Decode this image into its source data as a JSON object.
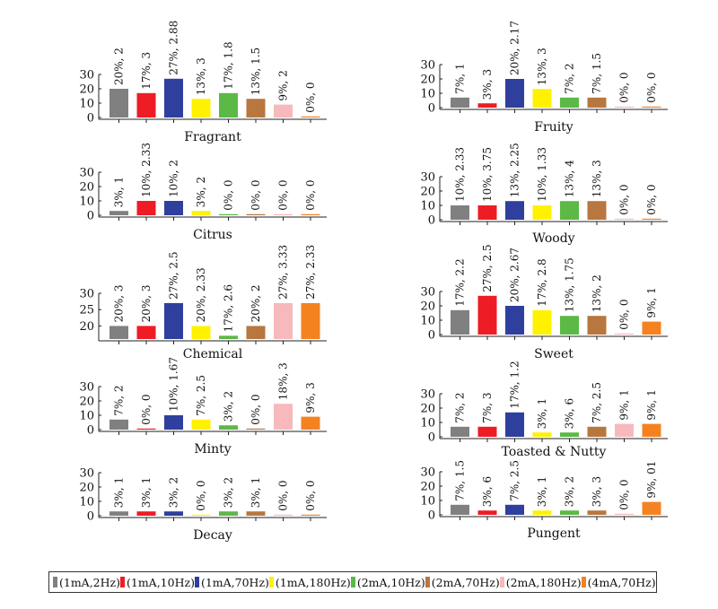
{
  "chart_data": [
    {
      "type": "bar",
      "title": "Fragrant",
      "ylim": [
        0,
        30
      ],
      "yticks": [
        0,
        10,
        20,
        30
      ],
      "values": [
        20,
        17,
        27,
        13,
        17,
        13,
        9,
        0
      ],
      "labels": [
        "20%, 2",
        "17%, 3",
        "27%, 2.88",
        "13%, 3",
        "17%, 1.8",
        "13%, 1.5",
        "9%, 2",
        "0%, 0"
      ]
    },
    {
      "type": "bar",
      "title": "Fruity",
      "ylim": [
        0,
        30
      ],
      "yticks": [
        0,
        10,
        20,
        30
      ],
      "values": [
        7,
        3,
        20,
        13,
        7,
        7,
        0,
        0
      ],
      "labels": [
        "7%, 1",
        "3%, 3",
        "20%, 2.17",
        "13%, 3",
        "7%, 2",
        "7%, 1.5",
        "0%, 0",
        "0%, 0"
      ]
    },
    {
      "type": "bar",
      "title": "Citrus",
      "ylim": [
        0,
        30
      ],
      "yticks": [
        0,
        10,
        20,
        30
      ],
      "values": [
        3,
        10,
        10,
        3,
        0,
        0,
        0,
        0
      ],
      "labels": [
        "3%, 1",
        "10%, 2.33",
        "10%, 2",
        "3%, 2",
        "0%, 0",
        "0%, 0",
        "0%, 0",
        "0%, 0"
      ]
    },
    {
      "type": "bar",
      "title": "Woody",
      "ylim": [
        0,
        30
      ],
      "yticks": [
        0,
        10,
        20,
        30
      ],
      "values": [
        10,
        10,
        13,
        10,
        13,
        13,
        0,
        0
      ],
      "labels": [
        "10%, 2.33",
        "10%, 3.75",
        "13%, 2.25",
        "10%, 1.33",
        "13%, 4",
        "13%, 3",
        "0%, 0",
        "0%, 0"
      ]
    },
    {
      "type": "bar",
      "title": "Chemical",
      "ylim": [
        16,
        30
      ],
      "yticks": [
        20,
        25,
        30
      ],
      "values": [
        20,
        20,
        27,
        20,
        17,
        20,
        27,
        27
      ],
      "labels": [
        "20%, 3",
        "20%, 3",
        "27%, 2.5",
        "20%, 2.33",
        "17%, 2.6",
        "20%, 2",
        "27%, 3.33",
        "27%, 2.33"
      ]
    },
    {
      "type": "bar",
      "title": "Sweet",
      "ylim": [
        0,
        30
      ],
      "yticks": [
        0,
        10,
        20,
        30
      ],
      "values": [
        17,
        27,
        20,
        17,
        13,
        13,
        0,
        9
      ],
      "labels": [
        "17%, 2.2",
        "27%, 2.5",
        "20%, 2.67",
        "17%, 2.8",
        "13%, 1.75",
        "13%, 2",
        "0%, 0",
        "9%, 1"
      ]
    },
    {
      "type": "bar",
      "title": "Minty",
      "ylim": [
        0,
        30
      ],
      "yticks": [
        0,
        10,
        20,
        30
      ],
      "values": [
        7,
        0,
        10,
        7,
        3,
        0,
        18,
        9
      ],
      "labels": [
        "7%, 2",
        "0%, 0",
        "10%, 1.67",
        "7%, 2.5",
        "3%, 2",
        "0%, 0",
        "18%, 3",
        "9%, 3"
      ]
    },
    {
      "type": "bar",
      "title": "Toasted & Nutty",
      "ylim": [
        0,
        30
      ],
      "yticks": [
        0,
        10,
        20,
        30
      ],
      "values": [
        7,
        7,
        17,
        3,
        3,
        7,
        9,
        9
      ],
      "labels": [
        "7%, 2",
        "7%, 3",
        "17%, 1.2",
        "3%, 1",
        "3%, 6",
        "7%, 2.5",
        "9%, 1",
        "9%, 1"
      ]
    },
    {
      "type": "bar",
      "title": "Decay",
      "ylim": [
        0,
        30
      ],
      "yticks": [
        0,
        10,
        20,
        30
      ],
      "values": [
        3,
        3,
        3,
        0,
        3,
        3,
        0,
        0
      ],
      "labels": [
        "3%, 1",
        "3%, 1",
        "3%, 2",
        "0%, 0",
        "3%, 2",
        "3%, 1",
        "0%, 0",
        "0%, 0"
      ]
    },
    {
      "type": "bar",
      "title": "Pungent",
      "ylim": [
        0,
        30
      ],
      "yticks": [
        0,
        10,
        20,
        30
      ],
      "values": [
        7,
        3,
        7,
        3,
        3,
        3,
        0,
        9
      ],
      "labels": [
        "7%, 1.5",
        "3%, 6",
        "7%, 2.5",
        "3%, 1",
        "3%, 2",
        "3%, 3",
        "0%, 0",
        "9%, 01"
      ]
    }
  ],
  "legend": [
    {
      "label": "(1mA,2Hz)",
      "color": "#808080"
    },
    {
      "label": "(1mA,10Hz)",
      "color": "#ee1c25"
    },
    {
      "label": "(1mA,70Hz)",
      "color": "#2e3f9e"
    },
    {
      "label": "(1mA,180Hz)",
      "color": "#fff200"
    },
    {
      "label": "(2mA,10Hz)",
      "color": "#5cb946"
    },
    {
      "label": "(2mA,70Hz)",
      "color": "#b8773f"
    },
    {
      "label": "(2mA,180Hz)",
      "color": "#f7b9bc"
    },
    {
      "label": "(4mA,70Hz)",
      "color": "#f58220"
    }
  ]
}
